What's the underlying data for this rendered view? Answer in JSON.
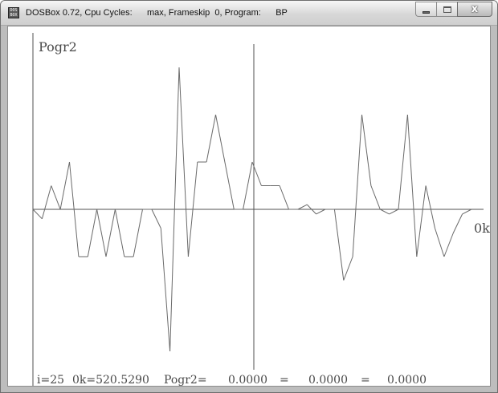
{
  "window": {
    "app_name": "DOSBox 0.72, Cpu Cycles:",
    "cycles": "max, Frameskip  0, Program:",
    "program": "BP",
    "icon": "dosbox-app-icon",
    "icon_label": "DOS BOX"
  },
  "buttons": {
    "minimize_icon": "minimize-icon",
    "maximize_icon": "maximize-icon",
    "close_label": "x"
  },
  "plot": {
    "series_label": "Pogr2",
    "axis_label": "0k",
    "line_color": "#6a6a6a",
    "axis_color": "#505050"
  },
  "chart_data": {
    "type": "line",
    "title": "Pogr2",
    "xlabel": "0k",
    "ylabel": "",
    "xlim": [
      0,
      48
    ],
    "ylim": [
      -1.4,
      1.6
    ],
    "x": [
      0,
      1,
      2,
      3,
      4,
      5,
      6,
      7,
      8,
      9,
      10,
      11,
      12,
      13,
      14,
      15,
      16,
      17,
      18,
      19,
      20,
      21,
      22,
      23,
      24,
      25,
      26,
      27,
      28,
      29,
      30,
      31,
      32,
      33,
      34,
      35,
      36,
      37,
      38,
      39,
      40,
      41,
      42,
      43,
      44,
      45,
      46,
      47,
      48
    ],
    "values": [
      0,
      -0.1,
      0.25,
      0,
      0.5,
      -0.5,
      -0.5,
      0,
      -0.5,
      0,
      -0.5,
      -0.5,
      0,
      0,
      -0.2,
      -1.5,
      1.5,
      -0.5,
      0.5,
      0.5,
      1,
      0.5,
      0,
      0,
      0.5,
      0.25,
      0.25,
      0.25,
      0,
      0,
      0.05,
      -0.05,
      0,
      0,
      -0.75,
      -0.5,
      1,
      0.25,
      0,
      -0.05,
      0,
      1,
      -0.5,
      0.25,
      -0.2,
      -0.5,
      -0.25,
      -0.05,
      0
    ]
  },
  "status": {
    "i": "i=25",
    "ok": "0k=520.5290",
    "pogr2": "Pogr2=",
    "v1": "0.0000",
    "eq1": "=",
    "v2": "0.0000",
    "eq2": "=",
    "v3": "0.0000"
  }
}
